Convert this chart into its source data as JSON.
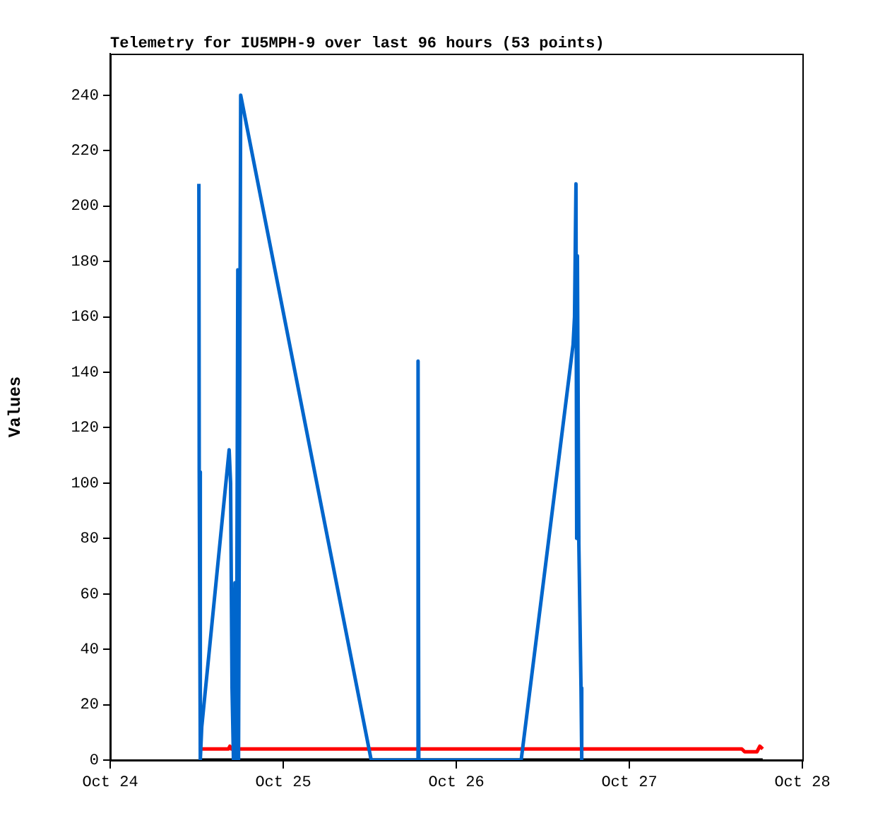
{
  "chart_data": {
    "type": "line",
    "title": "Telemetry for IU5MPH-9 over last 96 hours (53 points)",
    "ylabel": "Values",
    "xlim": [
      "--10-24",
      "--10-28"
    ],
    "xticks": [
      {
        "value": "--10-24",
        "label": "Oct 24"
      },
      {
        "value": "--10-25",
        "label": "Oct 25"
      },
      {
        "value": "--10-26",
        "label": "Oct 26"
      },
      {
        "value": "--10-27",
        "label": "Oct 27"
      },
      {
        "value": "--10-28",
        "label": "Oct 28"
      }
    ],
    "ylim": [
      0,
      255
    ],
    "yticks": [
      0,
      20,
      40,
      60,
      80,
      100,
      120,
      140,
      160,
      180,
      200,
      220,
      240
    ],
    "grid": false,
    "legend": false,
    "marker": "none",
    "line_style": "solid",
    "series": [
      {
        "color": "#0066cc",
        "x": [
          "--10-24T12:18",
          "--10-24T12:21",
          "--10-24T12:30",
          "--10-24T12:42",
          "--10-24T16:30",
          "--10-24T16:42",
          "--10-24T16:54",
          "--10-24T17:06",
          "--10-24T17:18",
          "--10-24T17:30",
          "--10-24T17:42",
          "--10-24T17:48",
          "--10-24T18:06",
          "--10-25T12:12",
          "--10-25T18:36",
          "--10-25T18:42",
          "--10-25T18:48",
          "--10-26T09:00",
          "--10-26T16:12",
          "--10-26T16:24",
          "--10-26T16:36",
          "--10-26T16:42",
          "--10-26T16:48",
          "--10-26T17:00",
          "--10-26T17:18",
          "--10-26T17:24"
        ],
        "values": [
          208,
          104,
          0,
          12,
          112,
          100,
          26,
          0,
          64,
          0,
          177,
          0,
          240,
          0,
          0,
          144,
          0,
          0,
          150,
          160,
          208,
          80,
          182,
          78,
          26,
          0
        ]
      },
      {
        "color": "#ff0000",
        "x": [
          "--10-24T12:18",
          "--10-24T16:24",
          "--10-24T16:36",
          "--10-24T16:48",
          "--10-25T12:12",
          "--10-26T09:00",
          "--10-27T15:36",
          "--10-27T16:00",
          "--10-27T17:42",
          "--10-27T18:06",
          "--10-27T18:30"
        ],
        "values": [
          4,
          4,
          5,
          4,
          4,
          4,
          4,
          3,
          3,
          5,
          4
        ]
      },
      {
        "color": "#000000",
        "x": [
          "--10-24T12:18",
          "--10-27T18:30"
        ],
        "values": [
          0,
          0
        ]
      }
    ]
  }
}
